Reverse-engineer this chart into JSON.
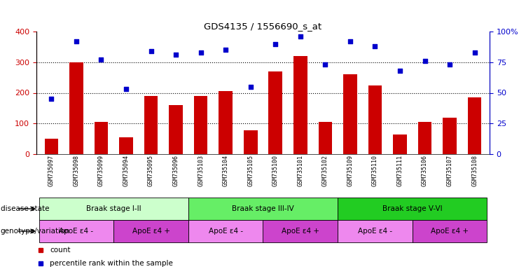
{
  "title": "GDS4135 / 1556690_s_at",
  "samples": [
    "GSM735097",
    "GSM735098",
    "GSM735099",
    "GSM735094",
    "GSM735095",
    "GSM735096",
    "GSM735103",
    "GSM735104",
    "GSM735105",
    "GSM735100",
    "GSM735101",
    "GSM735102",
    "GSM735109",
    "GSM735110",
    "GSM735111",
    "GSM735106",
    "GSM735107",
    "GSM735108"
  ],
  "counts": [
    50,
    300,
    105,
    55,
    190,
    160,
    190,
    205,
    78,
    270,
    320,
    105,
    260,
    225,
    63,
    105,
    120,
    185
  ],
  "percentiles": [
    45,
    92,
    77,
    53,
    84,
    81,
    83,
    85,
    55,
    90,
    96,
    73,
    92,
    88,
    68,
    76,
    73,
    83
  ],
  "ylim_left": [
    0,
    400
  ],
  "ylim_right": [
    0,
    100
  ],
  "yticks_left": [
    0,
    100,
    200,
    300,
    400
  ],
  "yticks_right": [
    0,
    25,
    50,
    75,
    100
  ],
  "yticklabels_right": [
    "0",
    "25",
    "50",
    "75",
    "100%"
  ],
  "bar_color": "#cc0000",
  "scatter_color": "#0000cc",
  "disease_state_groups": [
    {
      "label": "Braak stage I-II",
      "start": 0,
      "end": 6,
      "color": "#ccffcc"
    },
    {
      "label": "Braak stage III-IV",
      "start": 6,
      "end": 12,
      "color": "#66ee66"
    },
    {
      "label": "Braak stage V-VI",
      "start": 12,
      "end": 18,
      "color": "#22cc22"
    }
  ],
  "genotype_groups": [
    {
      "label": "ApoE ε4 -",
      "start": 0,
      "end": 3,
      "color": "#ee88ee"
    },
    {
      "label": "ApoE ε4 +",
      "start": 3,
      "end": 6,
      "color": "#cc44cc"
    },
    {
      "label": "ApoE ε4 -",
      "start": 6,
      "end": 9,
      "color": "#ee88ee"
    },
    {
      "label": "ApoE ε4 +",
      "start": 9,
      "end": 12,
      "color": "#cc44cc"
    },
    {
      "label": "ApoE ε4 -",
      "start": 12,
      "end": 15,
      "color": "#ee88ee"
    },
    {
      "label": "ApoE ε4 +",
      "start": 15,
      "end": 18,
      "color": "#cc44cc"
    }
  ],
  "disease_state_label": "disease state",
  "genotype_label": "genotype/variation",
  "legend_count_label": "count",
  "legend_pct_label": "percentile rank within the sample",
  "fig_width": 7.41,
  "fig_height": 3.84
}
